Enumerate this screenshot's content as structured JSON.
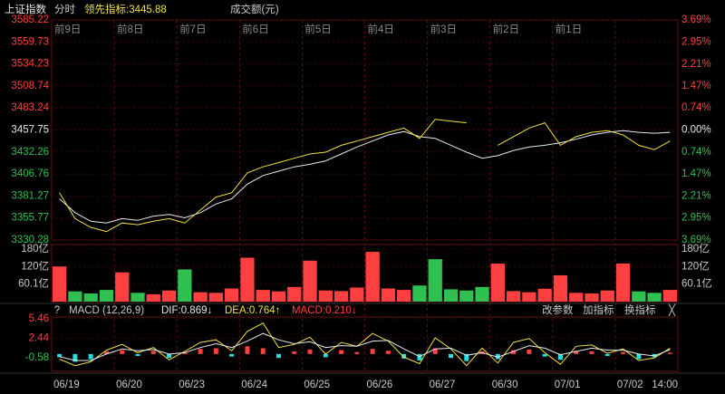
{
  "header": {
    "name": "上证指数",
    "mode": "分时",
    "lead": "领先指标:3445.88",
    "volume_unit": "成交额(元)"
  },
  "day_labels": [
    "前9日",
    "前8日",
    "前7日",
    "前6日",
    "前5日",
    "前4日",
    "前3日",
    "前2日",
    "前1日"
  ],
  "date_labels": [
    "06/19",
    "06/20",
    "06/23",
    "06/24",
    "06/25",
    "06/26",
    "06/27",
    "06/30",
    "07/01",
    "07/02",
    "14:00"
  ],
  "chart_data": [
    {
      "type": "line",
      "name": "price",
      "ylim": [
        3330.28,
        3585.22
      ],
      "yticks": [
        3585.22,
        3559.73,
        3534.23,
        3508.74,
        3483.24,
        3457.75,
        3432.26,
        3406.76,
        3381.27,
        3355.77,
        3330.28
      ],
      "y2lim": [
        -3.69,
        3.69
      ],
      "y2ticks": [
        {
          "value": 3.69,
          "label": "3.69%"
        },
        {
          "value": 2.95,
          "label": "2.95%"
        },
        {
          "value": 2.21,
          "label": "2.21%"
        },
        {
          "value": 1.47,
          "label": "1.47%"
        },
        {
          "value": 0.74,
          "label": "0.74%"
        },
        {
          "value": 0,
          "label": "0.00%"
        },
        {
          "value": -0.74,
          "label": "0.74%"
        },
        {
          "value": -1.47,
          "label": "1.47%"
        },
        {
          "value": -2.21,
          "label": "2.21%"
        },
        {
          "value": -2.95,
          "label": "2.95%"
        },
        {
          "value": -3.69,
          "label": "3.69%"
        }
      ],
      "series": [
        {
          "color": "#e8e8e8",
          "values": [
            3378,
            3362,
            3352,
            3350,
            3355,
            3353,
            3358,
            3360,
            3356,
            3362,
            3372,
            3378,
            3395,
            3405,
            3410,
            3415,
            3418,
            3422,
            3430,
            3438,
            3445,
            3452,
            3456,
            3450,
            3448,
            3440,
            3432,
            3425,
            3428,
            3434,
            3438,
            3440,
            3443,
            3447,
            3452,
            3455,
            3457,
            3455,
            3454,
            3455
          ]
        },
        {
          "color": "#f0e040",
          "values": [
            3385,
            3355,
            3345,
            3340,
            3350,
            3348,
            3352,
            3355,
            3350,
            3365,
            3380,
            3385,
            3408,
            3415,
            3420,
            3425,
            3430,
            3432,
            3440,
            3445,
            3450,
            3455,
            3460,
            3448,
            3470,
            3468,
            3466,
            null,
            3440,
            3450,
            3460,
            3466,
            3440,
            3450,
            3455,
            3457,
            3452,
            3440,
            3435,
            3445
          ]
        }
      ]
    },
    {
      "type": "bar",
      "name": "volume",
      "ylim": [
        0,
        195
      ],
      "yticks": [
        {
          "value": 180,
          "label": "180亿"
        },
        {
          "value": 120,
          "label": "120亿"
        },
        {
          "value": 60.1,
          "label": "60.1亿"
        }
      ],
      "colors": [
        "#ff4040",
        "#30c050"
      ],
      "values": [
        120,
        35,
        28,
        40,
        100,
        30,
        25,
        38,
        110,
        32,
        30,
        45,
        150,
        40,
        35,
        50,
        140,
        38,
        36,
        48,
        170,
        45,
        40,
        55,
        145,
        42,
        38,
        50,
        130,
        36,
        32,
        44,
        90,
        30,
        28,
        38,
        130,
        35,
        30,
        40
      ]
    },
    {
      "type": "macd",
      "name": "macd",
      "title": "MACD (12,26,9)",
      "dif_label": "DIF:0.869↓",
      "dea_label": "DEA:0.764↑",
      "macd_label": "MACD:0.210↓",
      "buttons": [
        "?",
        "改参数",
        "加指标",
        "换指标",
        "╳"
      ],
      "ylim": [
        -2.69,
        5.74
      ],
      "yticks": [
        5.46,
        2.44,
        -0.58
      ],
      "colors": [
        "#ff4040",
        "#20e0e0"
      ],
      "values": [
        -0.5,
        -1.2,
        -0.8,
        0.4,
        0.6,
        -0.3,
        0.5,
        -0.6,
        0.3,
        0.8,
        0.9,
        -0.4,
        1.2,
        0.9,
        -0.6,
        0.4,
        0.7,
        -0.5,
        0.6,
        0.3,
        0.8,
        0.5,
        -0.7,
        -1.0,
        0.9,
        -0.6,
        -1.1,
        0.4,
        -0.8,
        0.6,
        0.7,
        -0.4,
        -0.9,
        0.5,
        0.4,
        -0.3,
        0.3,
        -0.8,
        -0.5,
        0.2
      ],
      "series": [
        {
          "color": "#f0e040",
          "values": [
            -0.8,
            -1.8,
            -1.2,
            0.6,
            1.5,
            0.2,
            1.0,
            -0.9,
            0.4,
            1.8,
            2.2,
            0.5,
            3.5,
            4.8,
            1.0,
            1.5,
            2.6,
            0.0,
            1.8,
            1.2,
            3.2,
            2.0,
            -0.5,
            -1.5,
            2.5,
            0.8,
            -1.8,
            0.9,
            -1.4,
            1.8,
            2.4,
            0.2,
            -1.6,
            1.2,
            1.4,
            0.1,
            0.8,
            -1.0,
            -0.6,
            0.9
          ]
        },
        {
          "color": "#e8e8e8",
          "values": [
            -0.4,
            -1.0,
            -1.0,
            0.0,
            0.8,
            0.5,
            0.7,
            0.0,
            0.2,
            1.0,
            1.6,
            1.0,
            2.0,
            3.2,
            2.2,
            1.6,
            1.9,
            1.0,
            1.3,
            1.2,
            2.0,
            2.1,
            0.8,
            -0.4,
            0.8,
            0.9,
            -0.2,
            0.2,
            -0.5,
            0.4,
            1.3,
            0.9,
            -0.1,
            0.4,
            0.9,
            0.6,
            0.6,
            0.0,
            -0.3,
            0.7
          ]
        }
      ]
    }
  ]
}
